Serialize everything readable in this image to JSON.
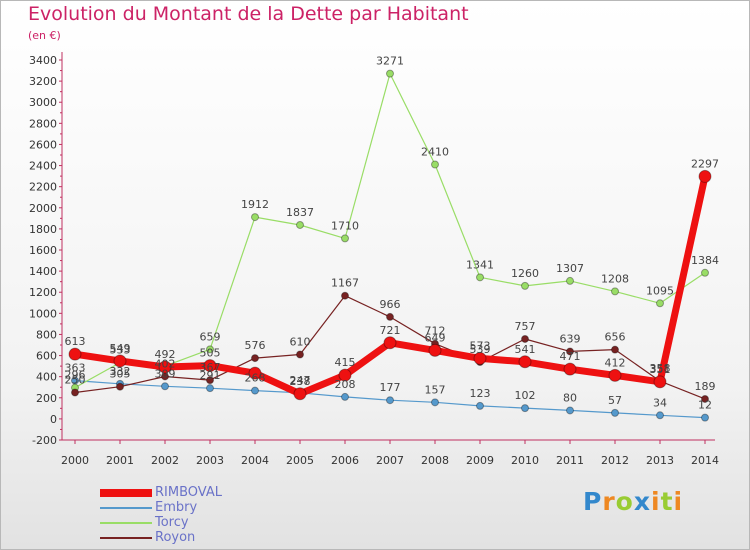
{
  "chart_data": {
    "type": "line",
    "title": "Evolution du Montant de la Dette par Habitant",
    "subtitle": "(en €)",
    "x": [
      "2000",
      "2001",
      "2002",
      "2003",
      "2004",
      "2005",
      "2006",
      "2007",
      "2008",
      "2009",
      "2010",
      "2011",
      "2012",
      "2013",
      "2014"
    ],
    "ylim": [
      -200,
      3400
    ],
    "yticks": [
      -200,
      0,
      200,
      400,
      600,
      800,
      1000,
      1200,
      1400,
      1600,
      1800,
      2000,
      2200,
      2400,
      2600,
      2800,
      3000,
      3200,
      3400
    ],
    "grid": false,
    "legend_position": "bottom-left",
    "series": [
      {
        "name": "RIMBOVAL",
        "color": "#ee1111",
        "values": [
          613,
          549,
          492,
          505,
          433,
          238,
          415,
          721,
          649,
          573,
          541,
          471,
          412,
          351,
          2297
        ],
        "labels": [
          "613",
          "549",
          "492",
          "505",
          "",
          "238",
          "415",
          "721",
          "649",
          "573",
          "541",
          "471",
          "412",
          "351",
          "2297"
        ]
      },
      {
        "name": "Embry",
        "color": "#5599cc",
        "values": [
          363,
          332,
          309,
          291,
          268,
          247,
          208,
          177,
          157,
          123,
          102,
          80,
          57,
          34,
          12
        ],
        "labels": [
          "363",
          "332",
          "309",
          "291",
          "268",
          "247",
          "208",
          "177",
          "157",
          "123",
          "102",
          "80",
          "57",
          "34",
          "12"
        ]
      },
      {
        "name": "Torcy",
        "color": "#99dd66",
        "values": [
          296,
          533,
          500,
          659,
          1912,
          1837,
          1710,
          3271,
          2410,
          1341,
          1260,
          1307,
          1208,
          1095,
          1384
        ],
        "labels": [
          "296",
          "533",
          "",
          "659",
          "1912",
          "1837",
          "1710",
          "3271",
          "2410",
          "1341",
          "1260",
          "1307",
          "1208",
          "1095",
          "1384"
        ]
      },
      {
        "name": "Royon",
        "color": "#772222",
        "values": [
          250,
          305,
          402,
          367,
          576,
          610,
          1167,
          966,
          712,
          539,
          757,
          639,
          656,
          358,
          189
        ],
        "labels": [
          "250",
          "305",
          "402",
          "367",
          "576",
          "610",
          "1167",
          "966",
          "712",
          "539",
          "757",
          "639",
          "656",
          "358",
          "189"
        ]
      }
    ]
  },
  "logo": {
    "letters": [
      "P",
      "r",
      "o",
      "x",
      "i",
      "t",
      "i"
    ],
    "colors": [
      "#3388cc",
      "#ee8822",
      "#99cc33",
      "#3388cc",
      "#ee8822",
      "#99cc33",
      "#ee8822"
    ]
  }
}
